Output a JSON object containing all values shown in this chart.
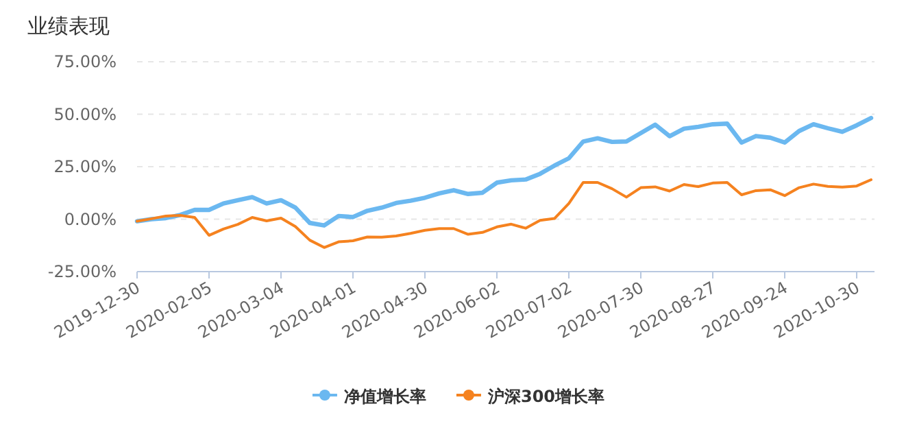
{
  "chart_data": {
    "type": "line",
    "title": "业绩表现",
    "categories": [
      "2019-12-30",
      null,
      null,
      null,
      null,
      "2020-02-05",
      null,
      null,
      null,
      null,
      "2020-03-04",
      null,
      null,
      null,
      null,
      "2020-04-01",
      null,
      null,
      null,
      null,
      "2020-04-30",
      null,
      null,
      null,
      null,
      "2020-06-02",
      null,
      null,
      null,
      null,
      "2020-07-02",
      null,
      null,
      null,
      null,
      "2020-07-30",
      null,
      null,
      null,
      null,
      "2020-08-27",
      null,
      null,
      null,
      null,
      "2020-09-24",
      null,
      null,
      null,
      null,
      "2020-10-30",
      null
    ],
    "series": [
      {
        "name": "净值增长率",
        "color": "#6bb8f0",
        "values": [
          -1,
          0,
          0.5,
          2,
          4.4,
          4.4,
          7.5,
          9,
          10.5,
          7.5,
          9,
          5.5,
          -1.8,
          -3,
          1.5,
          1,
          4,
          5.5,
          7.7,
          8.8,
          10.2,
          12.3,
          13.8,
          12,
          12.6,
          17.4,
          18.5,
          18.9,
          21.6,
          25.5,
          29,
          37,
          38.5,
          36.8,
          37,
          41,
          45,
          39.5,
          43.1,
          44,
          45.2,
          45.5,
          36.5,
          39.6,
          38.8,
          36.5,
          42,
          45.2,
          43.3,
          41.6,
          44.7,
          48.2
        ]
      },
      {
        "name": "沪深300增长率",
        "color": "#f5821f",
        "values": [
          -1,
          0.2,
          1.5,
          1.8,
          0.8,
          -7.7,
          -4.7,
          -2.5,
          0.8,
          -0.8,
          0.5,
          -3.5,
          -10,
          -13.5,
          -10.8,
          -10.3,
          -8.5,
          -8.6,
          -8,
          -6.8,
          -5.3,
          -4.5,
          -4.5,
          -7.2,
          -6.3,
          -3.7,
          -2.4,
          -4.3,
          -0.6,
          0.3,
          7.5,
          17.5,
          17.5,
          14.5,
          10.5,
          15,
          15.4,
          13.4,
          16.5,
          15.5,
          17.2,
          17.5,
          11.6,
          13.6,
          14,
          11.2,
          15,
          16.7,
          15.6,
          15.3,
          15.8,
          18.8
        ]
      }
    ],
    "ylim": [
      -25,
      75
    ],
    "yticks": [
      {
        "value": -25,
        "label": "-25.00%"
      },
      {
        "value": 0,
        "label": "0.00%"
      },
      {
        "value": 25,
        "label": "25.00%"
      },
      {
        "value": 50,
        "label": "50.00%"
      },
      {
        "value": 75,
        "label": "75.00%"
      }
    ],
    "grid": "y",
    "legend": "bottom"
  }
}
